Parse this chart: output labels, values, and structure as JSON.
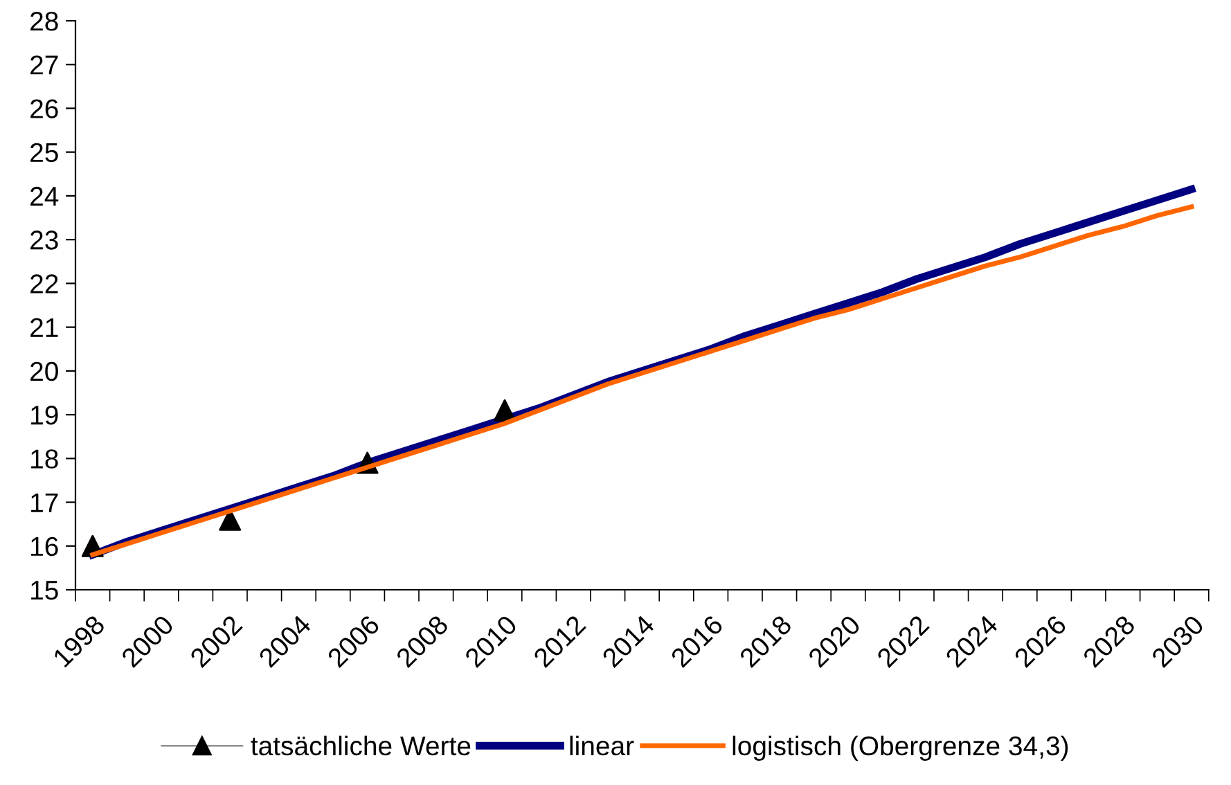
{
  "chart_data": {
    "type": "line",
    "categories": [
      "1998",
      null,
      "2000",
      null,
      "2002",
      null,
      "2004",
      null,
      "2006",
      null,
      "2008",
      null,
      "2010",
      null,
      "2012",
      null,
      "2014",
      null,
      "2016",
      null,
      "2018",
      null,
      "2020",
      null,
      "2022",
      null,
      "2024",
      null,
      "2026",
      null,
      "2028",
      null,
      "2030"
    ],
    "series": [
      {
        "name": "tatsächliche Werte",
        "type": "scatter",
        "color": "#000000",
        "marker": "triangle",
        "values": [
          16.0,
          null,
          null,
          null,
          16.6,
          null,
          null,
          null,
          17.9,
          null,
          null,
          null,
          19.1,
          null,
          null,
          null,
          null,
          null,
          null,
          null,
          null,
          null,
          null,
          null,
          null,
          null,
          null,
          null,
          null,
          null,
          null,
          null,
          null
        ]
      },
      {
        "name": "linear",
        "color": "#000080",
        "values": [
          15.8,
          16.1,
          16.35,
          16.6,
          16.85,
          17.1,
          17.35,
          17.6,
          17.9,
          18.15,
          18.4,
          18.65,
          18.9,
          19.15,
          19.45,
          19.75,
          20.0,
          20.25,
          20.5,
          20.8,
          21.05,
          21.3,
          21.55,
          21.8,
          22.1,
          22.35,
          22.6,
          22.9,
          23.15,
          23.4,
          23.65,
          23.9,
          24.15
        ]
      },
      {
        "name": "logistisch (Obergrenze 34,3)",
        "color": "#ff6600",
        "values": [
          15.8,
          16.05,
          16.3,
          16.55,
          16.8,
          17.05,
          17.3,
          17.55,
          17.8,
          18.05,
          18.3,
          18.55,
          18.8,
          19.1,
          19.4,
          19.7,
          19.95,
          20.2,
          20.45,
          20.7,
          20.95,
          21.2,
          21.4,
          21.65,
          21.9,
          22.15,
          22.4,
          22.6,
          22.85,
          23.1,
          23.3,
          23.55,
          23.75
        ]
      }
    ],
    "ylim": [
      15,
      28
    ],
    "yticks": [
      15,
      16,
      17,
      18,
      19,
      20,
      21,
      22,
      23,
      24,
      25,
      26,
      27,
      28
    ],
    "grid": false,
    "legend": "bottom",
    "marker": "none",
    "line_style": "solid"
  }
}
